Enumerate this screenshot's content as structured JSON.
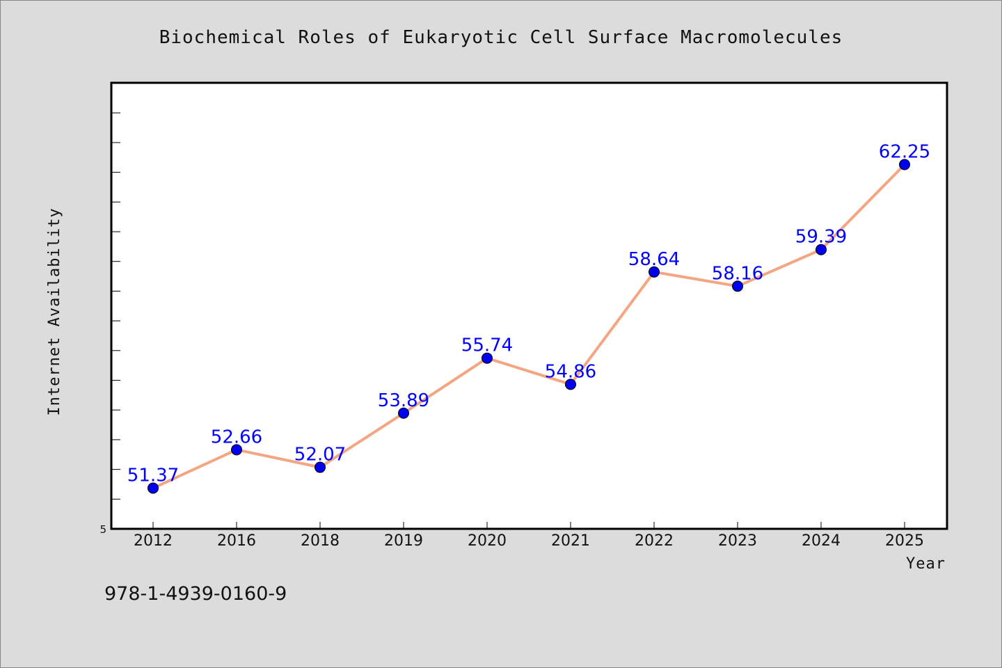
{
  "footer": {
    "isbn": "978-1-4939-0160-9"
  },
  "colors": {
    "line": "#f4a582",
    "marker": "#0000ee",
    "label": "#0000ff",
    "background": "#dcdcdc",
    "plot_bg": "#ffffff"
  },
  "chart_data": {
    "type": "line",
    "title": "Biochemical Roles of Eukaryotic Cell Surface Macromolecules",
    "xlabel": "Year",
    "ylabel": "Internet Availability",
    "categories": [
      "2012",
      "2016",
      "2018",
      "2019",
      "2020",
      "2021",
      "2022",
      "2023",
      "2024",
      "2025"
    ],
    "series": [
      {
        "values": [
          51.37,
          52.66,
          52.07,
          53.89,
          55.74,
          54.86,
          58.64,
          58.16,
          59.39,
          62.25
        ]
      }
    ],
    "data_labels": [
      "51.37",
      "52.66",
      "52.07",
      "53.89",
      "55.74",
      "54.86",
      "58.64",
      "58.16",
      "59.39",
      "62.25"
    ],
    "ylim": [
      50.0,
      65.0
    ],
    "ytick_labels": [
      "5"
    ],
    "grid": false,
    "legend": "none"
  }
}
